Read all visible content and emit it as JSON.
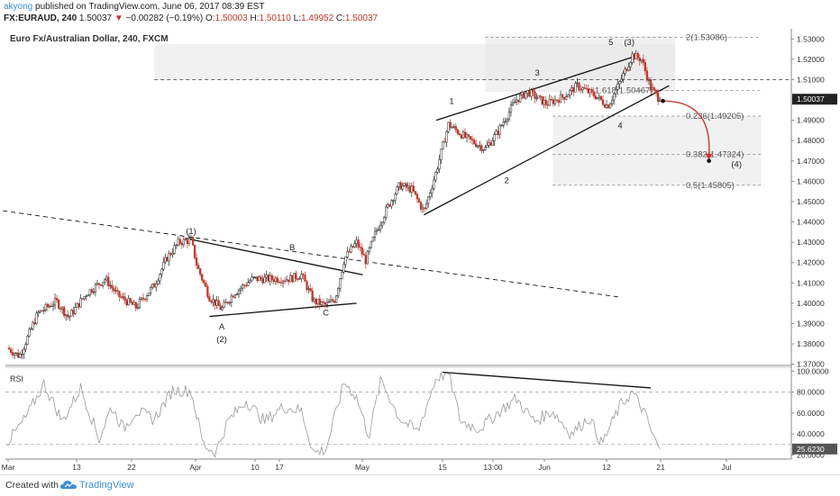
{
  "header": {
    "user": "akyong",
    "published": "published on TradingView.com, June 06, 2017 08:39 EST",
    "symbol_line": "FX:EURAUD, 240",
    "last": "1.50037",
    "change": "−0.00282 (−0.19%)",
    "o_label": "O:",
    "o": "1.50003",
    "h_label": "H:",
    "h": "1.50110",
    "l_label": "L:",
    "l": "1.49952",
    "c_label": "C:",
    "c": "1.50037"
  },
  "footer": {
    "created_with": "Created with",
    "brand": "TradingView"
  },
  "colors": {
    "up": "#222222",
    "down": "#c0392b",
    "accent": "#c0392b",
    "brand": "#3c8fd6"
  },
  "chart_data": [
    {
      "type": "candlestick",
      "title": "Euro Fx/Australian Dollar, 240, FXCM",
      "ylim": [
        1.3685,
        1.535
      ],
      "yticks": [
        "1.53000",
        "1.52000",
        "1.51000",
        "1.50037",
        "1.49000",
        "1.48000",
        "1.47000",
        "1.46000",
        "1.45000",
        "1.44000",
        "1.43000",
        "1.42000",
        "1.41000",
        "1.40000",
        "1.39000",
        "1.38000",
        "1.37000"
      ],
      "last_price": "1.50037",
      "xticks": [
        "Mar",
        "13",
        "22",
        "Apr",
        "10",
        "17",
        "May",
        "15",
        "13:00",
        "Jun",
        "12",
        "21",
        "Jul"
      ],
      "price_path": [
        {
          "t": 0,
          "p": 1.378
        },
        {
          "t": 2,
          "p": 1.374
        },
        {
          "t": 5,
          "p": 1.395
        },
        {
          "t": 8,
          "p": 1.401
        },
        {
          "t": 10,
          "p": 1.393
        },
        {
          "t": 13,
          "p": 1.405
        },
        {
          "t": 16,
          "p": 1.412
        },
        {
          "t": 18,
          "p": 1.404
        },
        {
          "t": 21,
          "p": 1.398
        },
        {
          "t": 24,
          "p": 1.409
        },
        {
          "t": 26,
          "p": 1.422
        },
        {
          "t": 28,
          "p": 1.43
        },
        {
          "t": 30,
          "p": 1.431
        },
        {
          "t": 31,
          "p": 1.418
        },
        {
          "t": 33,
          "p": 1.403
        },
        {
          "t": 35,
          "p": 1.397
        },
        {
          "t": 37,
          "p": 1.405
        },
        {
          "t": 40,
          "p": 1.412
        },
        {
          "t": 43,
          "p": 1.412
        },
        {
          "t": 46,
          "p": 1.412
        },
        {
          "t": 48,
          "p": 1.414
        },
        {
          "t": 50,
          "p": 1.401
        },
        {
          "t": 52,
          "p": 1.399
        },
        {
          "t": 53.5,
          "p": 1.402
        },
        {
          "t": 55,
          "p": 1.422
        },
        {
          "t": 57,
          "p": 1.43
        },
        {
          "t": 58.5,
          "p": 1.421
        },
        {
          "t": 60,
          "p": 1.434
        },
        {
          "t": 62,
          "p": 1.447
        },
        {
          "t": 64,
          "p": 1.458
        },
        {
          "t": 66,
          "p": 1.456
        },
        {
          "t": 68,
          "p": 1.445
        },
        {
          "t": 70,
          "p": 1.465
        },
        {
          "t": 72,
          "p": 1.488
        },
        {
          "t": 75,
          "p": 1.481
        },
        {
          "t": 78,
          "p": 1.476
        },
        {
          "t": 80,
          "p": 1.484
        },
        {
          "t": 83,
          "p": 1.5
        },
        {
          "t": 85,
          "p": 1.504
        },
        {
          "t": 88,
          "p": 1.498
        },
        {
          "t": 91,
          "p": 1.502
        },
        {
          "t": 93,
          "p": 1.507
        },
        {
          "t": 96,
          "p": 1.502
        },
        {
          "t": 98,
          "p": 1.497
        },
        {
          "t": 100,
          "p": 1.509
        },
        {
          "t": 102,
          "p": 1.522
        },
        {
          "t": 103.5,
          "p": 1.52
        },
        {
          "t": 105,
          "p": 1.506
        },
        {
          "t": 106.5,
          "p": 1.5
        }
      ],
      "annotations": [
        {
          "label": "(1)",
          "kind": "wave",
          "at": {
            "t": 30,
            "p": 1.434
          }
        },
        {
          "label": "A",
          "kind": "wave",
          "at": {
            "t": 35,
            "p": 1.387
          }
        },
        {
          "label": "(2)",
          "kind": "wave",
          "at": {
            "t": 35,
            "p": 1.381
          }
        },
        {
          "label": "B",
          "kind": "wave",
          "at": {
            "t": 46.5,
            "p": 1.426
          }
        },
        {
          "label": "C",
          "kind": "wave",
          "at": {
            "t": 52,
            "p": 1.394
          }
        },
        {
          "label": "1",
          "kind": "wave",
          "at": {
            "t": 72.5,
            "p": 1.498
          }
        },
        {
          "label": "2",
          "kind": "wave",
          "at": {
            "t": 81.5,
            "p": 1.459
          }
        },
        {
          "label": "3",
          "kind": "wave",
          "at": {
            "t": 86.5,
            "p": 1.512
          }
        },
        {
          "label": "4",
          "kind": "wave",
          "at": {
            "t": 100,
            "p": 1.486
          }
        },
        {
          "label": "5",
          "kind": "wave",
          "at": {
            "t": 98.5,
            "p": 1.527
          }
        },
        {
          "label": "(3)",
          "kind": "wave",
          "at": {
            "t": 101.5,
            "p": 1.527
          }
        },
        {
          "label": "(4)",
          "kind": "wave",
          "at": {
            "t": 119,
            "p": 1.467
          }
        }
      ],
      "trendlines": [
        {
          "from": {
            "t": -2,
            "p": 1.446
          },
          "to": {
            "t": 100,
            "p": 1.403
          },
          "dashed": true
        },
        {
          "from": {
            "t": 29,
            "p": 1.432
          },
          "to": {
            "t": 58,
            "p": 1.414
          },
          "dashed": false
        },
        {
          "from": {
            "t": 33,
            "p": 1.3935
          },
          "to": {
            "t": 57,
            "p": 1.4
          },
          "dashed": false
        },
        {
          "from": {
            "t": 70,
            "p": 1.49
          },
          "to": {
            "t": 103,
            "p": 1.522
          },
          "dashed": false
        },
        {
          "from": {
            "t": 68,
            "p": 1.4435
          },
          "to": {
            "t": 108,
            "p": 1.507
          },
          "dashed": false
        }
      ],
      "fib_levels": [
        {
          "label": "2(1.53086)",
          "value": 1.53086
        },
        {
          "label": "1.618(1.50467)",
          "value": 1.50467
        },
        {
          "label": "0.236(1.49205)",
          "value": 1.49205
        },
        {
          "label": "0.382(1.47324)",
          "value": 1.47324
        },
        {
          "label": "0.5(1.45805)",
          "value": 1.45805
        }
      ],
      "zones": [
        {
          "from_t": 24,
          "to_t": 109,
          "p_top": 1.5275,
          "p_bot": 1.51
        },
        {
          "from_t": 78,
          "to_t": 109,
          "p_top": 1.5315,
          "p_bot": 1.504
        },
        {
          "from_t": 89,
          "to_t": 123,
          "p_top": 1.492,
          "p_bot": 1.4735
        },
        {
          "from_t": 89,
          "to_t": 123,
          "p_top": 1.4735,
          "p_bot": 1.458
        }
      ],
      "dashed_horizontal": [
        {
          "from_t": 24,
          "to_t": 140,
          "p": 1.51
        }
      ],
      "projection": {
        "from": {
          "t": 107,
          "p": 1.4995
        },
        "to": {
          "t": 114.5,
          "p": 1.47
        }
      }
    },
    {
      "type": "line",
      "title": "RSI",
      "ylim": [
        16,
        102
      ],
      "yticks": [
        "100.0000",
        "80.0000",
        "60.0000",
        "40.0000",
        "20.0000"
      ],
      "last_value": "25.6230",
      "levels": [
        80,
        30
      ],
      "divergence_line": {
        "from": {
          "t": 71,
          "v": 99
        },
        "to": {
          "t": 105,
          "v": 84
        }
      },
      "values_by_t": [
        {
          "t": 0,
          "v": 32
        },
        {
          "t": 3,
          "v": 55
        },
        {
          "t": 6,
          "v": 88
        },
        {
          "t": 9,
          "v": 52
        },
        {
          "t": 12,
          "v": 84
        },
        {
          "t": 15,
          "v": 35
        },
        {
          "t": 17,
          "v": 66
        },
        {
          "t": 19,
          "v": 45
        },
        {
          "t": 21,
          "v": 62
        },
        {
          "t": 24,
          "v": 54
        },
        {
          "t": 27,
          "v": 82
        },
        {
          "t": 30,
          "v": 81
        },
        {
          "t": 32,
          "v": 30
        },
        {
          "t": 34,
          "v": 22
        },
        {
          "t": 36,
          "v": 52
        },
        {
          "t": 39,
          "v": 72
        },
        {
          "t": 42,
          "v": 52
        },
        {
          "t": 45,
          "v": 66
        },
        {
          "t": 48,
          "v": 62
        },
        {
          "t": 50,
          "v": 22
        },
        {
          "t": 52,
          "v": 25
        },
        {
          "t": 55,
          "v": 90
        },
        {
          "t": 57,
          "v": 75
        },
        {
          "t": 59,
          "v": 38
        },
        {
          "t": 61,
          "v": 92
        },
        {
          "t": 64,
          "v": 55
        },
        {
          "t": 67,
          "v": 42
        },
        {
          "t": 70,
          "v": 94
        },
        {
          "t": 72,
          "v": 98
        },
        {
          "t": 74,
          "v": 52
        },
        {
          "t": 77,
          "v": 45
        },
        {
          "t": 80,
          "v": 60
        },
        {
          "t": 83,
          "v": 74
        },
        {
          "t": 86,
          "v": 52
        },
        {
          "t": 89,
          "v": 62
        },
        {
          "t": 92,
          "v": 40
        },
        {
          "t": 95,
          "v": 56
        },
        {
          "t": 97,
          "v": 30
        },
        {
          "t": 100,
          "v": 67
        },
        {
          "t": 102,
          "v": 80
        },
        {
          "t": 104,
          "v": 60
        },
        {
          "t": 105.5,
          "v": 36
        },
        {
          "t": 106.5,
          "v": 25.6
        }
      ]
    }
  ]
}
